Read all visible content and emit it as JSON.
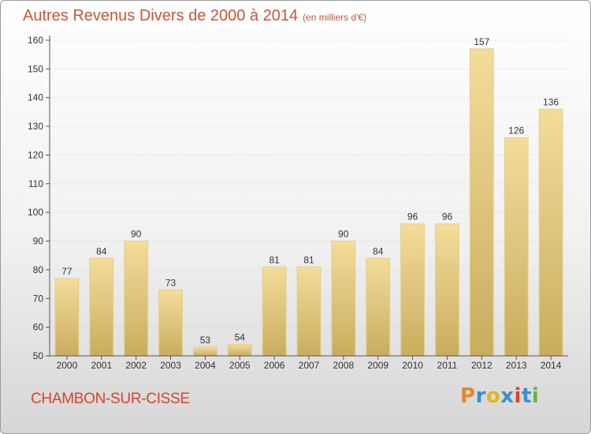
{
  "header": {
    "title": "Autres Revenus Divers de 2000 à 2014",
    "unit": "(en milliers d'€)"
  },
  "footer": {
    "city": "CHAMBON-SUR-CISSE",
    "logo_text": "Proxiti",
    "logo_colors": [
      "#e8862a",
      "#3a8fd0",
      "#d9b81f",
      "#3a8fd0",
      "#e0402d",
      "#3a8fd0",
      "#6cb33e"
    ]
  },
  "colors": {
    "bar_light": "#f4dc9a",
    "bar_dark": "#c9ad5e",
    "title": "#c8553a",
    "axis": "#555555",
    "grid": "#d9d9d9"
  },
  "chart_data": {
    "type": "bar",
    "title": "Autres Revenus Divers de 2000 à 2014",
    "subtitle": "(en milliers d'€)",
    "xlabel": "",
    "ylabel": "",
    "categories": [
      "2000",
      "2001",
      "2002",
      "2003",
      "2004",
      "2005",
      "2006",
      "2007",
      "2008",
      "2009",
      "2010",
      "2011",
      "2012",
      "2013",
      "2014"
    ],
    "values": [
      77,
      84,
      90,
      73,
      53,
      54,
      81,
      81,
      90,
      84,
      96,
      96,
      157,
      126,
      136
    ],
    "ylim": [
      50,
      160
    ],
    "yticks": [
      50,
      60,
      70,
      80,
      90,
      100,
      110,
      120,
      130,
      140,
      150,
      160
    ],
    "grid": true,
    "data_labels": true
  }
}
